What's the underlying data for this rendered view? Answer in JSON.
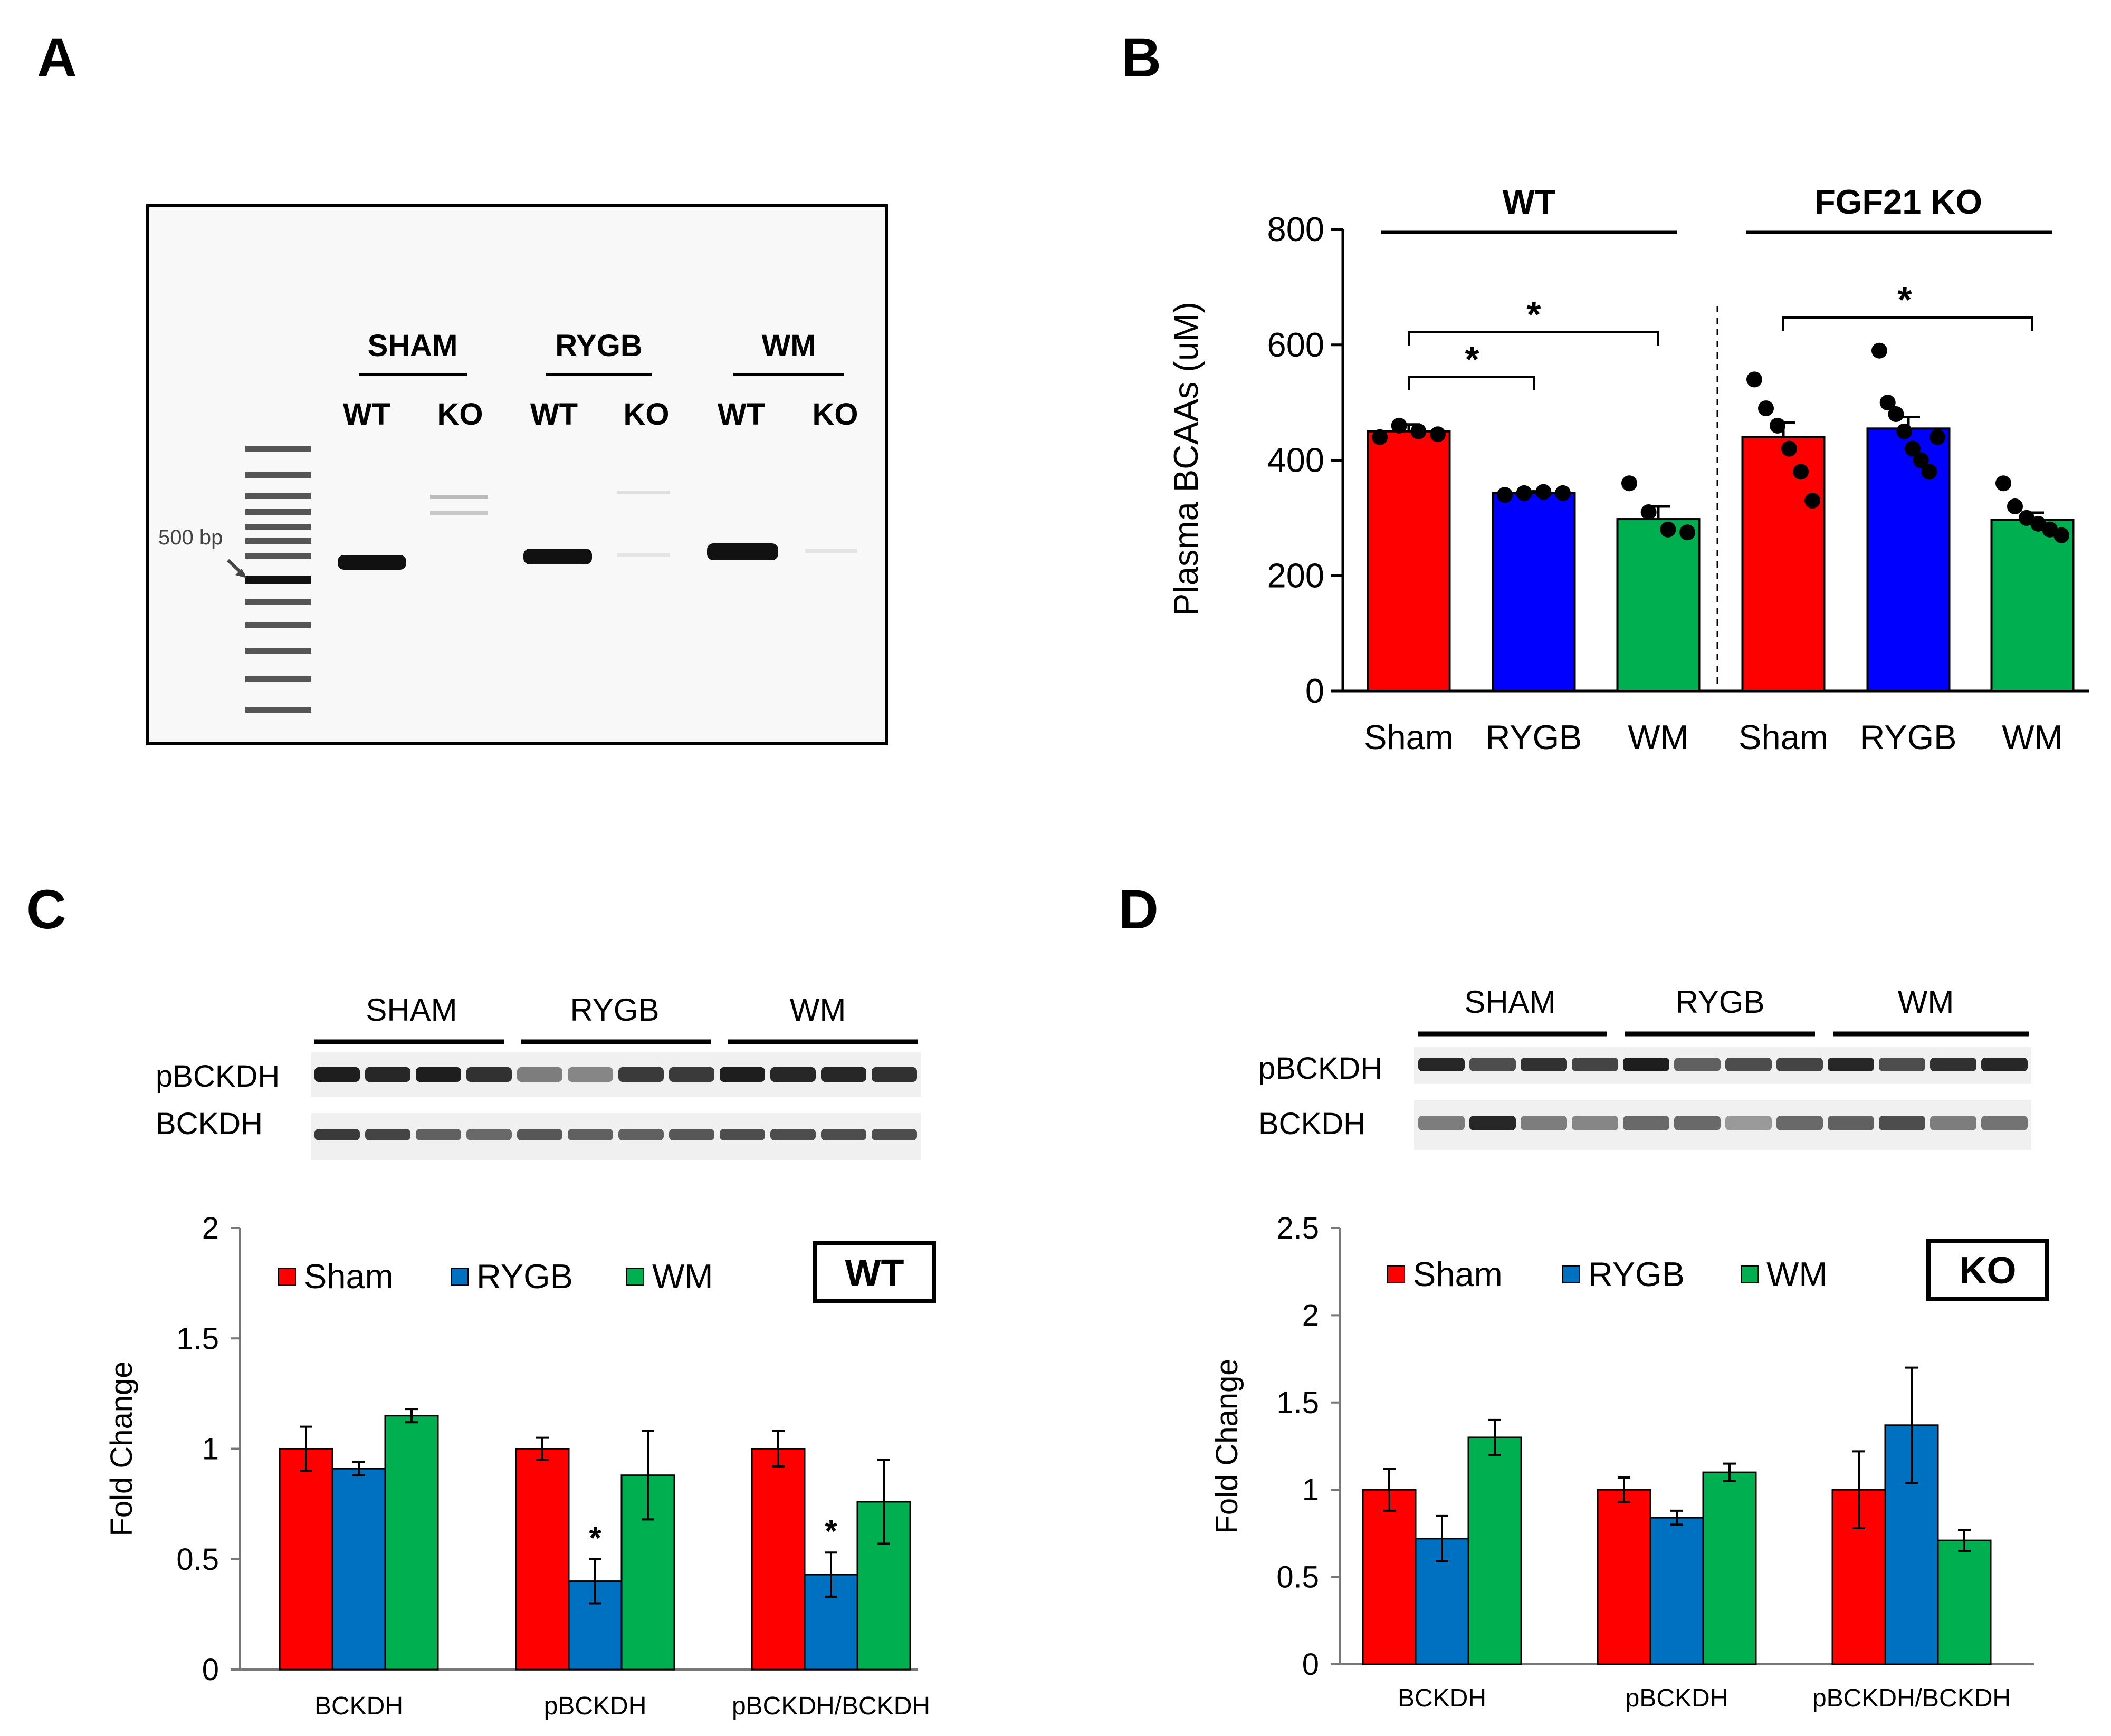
{
  "panel_letters": [
    "A",
    "B",
    "C",
    "D"
  ],
  "gel": {
    "ladder_label": "500 bp",
    "groups": [
      {
        "name": "SHAM",
        "lanes": [
          "WT",
          "KO"
        ]
      },
      {
        "name": "RYGB",
        "lanes": [
          "WT",
          "KO"
        ]
      },
      {
        "name": "WM",
        "lanes": [
          "WT",
          "KO"
        ]
      }
    ]
  },
  "blots": {
    "C": {
      "groups": [
        "SHAM",
        "RYGB",
        "WM"
      ],
      "rows": [
        "pBCKDH",
        "BCKDH"
      ]
    },
    "D": {
      "groups": [
        "SHAM",
        "RYGB",
        "WM"
      ],
      "rows": [
        "pBCKDH",
        "BCKDH"
      ]
    }
  },
  "colors": {
    "sham": "#ff0000",
    "rygb_b": "#0000ff",
    "rygb_cd": "#0070c0",
    "wm": "#00b050"
  },
  "chart_data": [
    {
      "panel": "B",
      "type": "bar",
      "ylabel": "Plasma BCAAs (uM)",
      "ylim": [
        0,
        800
      ],
      "yticks": [
        0,
        200,
        400,
        600,
        800
      ],
      "groups": [
        {
          "name": "WT",
          "categories": [
            "Sham",
            "RYGB",
            "WM"
          ],
          "values": [
            450,
            343,
            298
          ],
          "errors": [
            12,
            3,
            22
          ],
          "points": [
            [
              440,
              460,
              450,
              445
            ],
            [
              340,
              343,
              345,
              343
            ],
            [
              360,
              310,
              280,
              275
            ]
          ]
        },
        {
          "name": "FGF21 KO",
          "categories": [
            "Sham",
            "RYGB",
            "WM"
          ],
          "values": [
            440,
            455,
            297
          ],
          "errors": [
            25,
            20,
            12
          ],
          "points": [
            [
              540,
              490,
              460,
              420,
              380,
              330
            ],
            [
              590,
              500,
              480,
              450,
              420,
              400,
              380,
              440
            ],
            [
              360,
              320,
              300,
              290,
              280,
              270
            ]
          ]
        }
      ],
      "significance": [
        {
          "group": "WT",
          "from": "Sham",
          "to": "RYGB",
          "label": "*"
        },
        {
          "group": "WT",
          "from": "Sham",
          "to": "WM",
          "label": "*"
        },
        {
          "group": "FGF21 KO",
          "from": "Sham",
          "to": "WM",
          "label": "*"
        }
      ]
    },
    {
      "panel": "C",
      "type": "bar",
      "tag": "WT",
      "ylabel": "Fold Change",
      "ylim": [
        0,
        2
      ],
      "yticks": [
        "0",
        "0.5",
        "1",
        "1.5",
        "2"
      ],
      "categories": [
        "BCKDH",
        "pBCKDH",
        "pBCKDH/BCKDH"
      ],
      "series": [
        {
          "name": "Sham",
          "values": [
            1.0,
            1.0,
            1.0
          ],
          "errors": [
            0.1,
            0.05,
            0.08
          ]
        },
        {
          "name": "RYGB",
          "values": [
            0.91,
            0.4,
            0.43
          ],
          "errors": [
            0.03,
            0.1,
            0.1
          ]
        },
        {
          "name": "WM",
          "values": [
            1.15,
            0.88,
            0.76
          ],
          "errors": [
            0.03,
            0.2,
            0.19
          ]
        }
      ],
      "significance": [
        {
          "category": "pBCKDH",
          "series": "RYGB",
          "label": "*"
        },
        {
          "category": "pBCKDH/BCKDH",
          "series": "RYGB",
          "label": "*"
        }
      ]
    },
    {
      "panel": "D",
      "type": "bar",
      "tag": "KO",
      "ylabel": "Fold Change",
      "ylim": [
        0,
        2.5
      ],
      "yticks": [
        "0",
        "0.5",
        "1",
        "1.5",
        "2",
        "2.5"
      ],
      "categories": [
        "BCKDH",
        "pBCKDH",
        "pBCKDH/BCKDH"
      ],
      "series": [
        {
          "name": "Sham",
          "values": [
            1.0,
            1.0,
            1.0
          ],
          "errors": [
            0.12,
            0.07,
            0.22
          ]
        },
        {
          "name": "RYGB",
          "values": [
            0.72,
            0.84,
            1.37
          ],
          "errors": [
            0.13,
            0.04,
            0.33
          ]
        },
        {
          "name": "WM",
          "values": [
            1.3,
            1.1,
            0.71
          ],
          "errors": [
            0.1,
            0.05,
            0.06
          ]
        }
      ]
    }
  ]
}
